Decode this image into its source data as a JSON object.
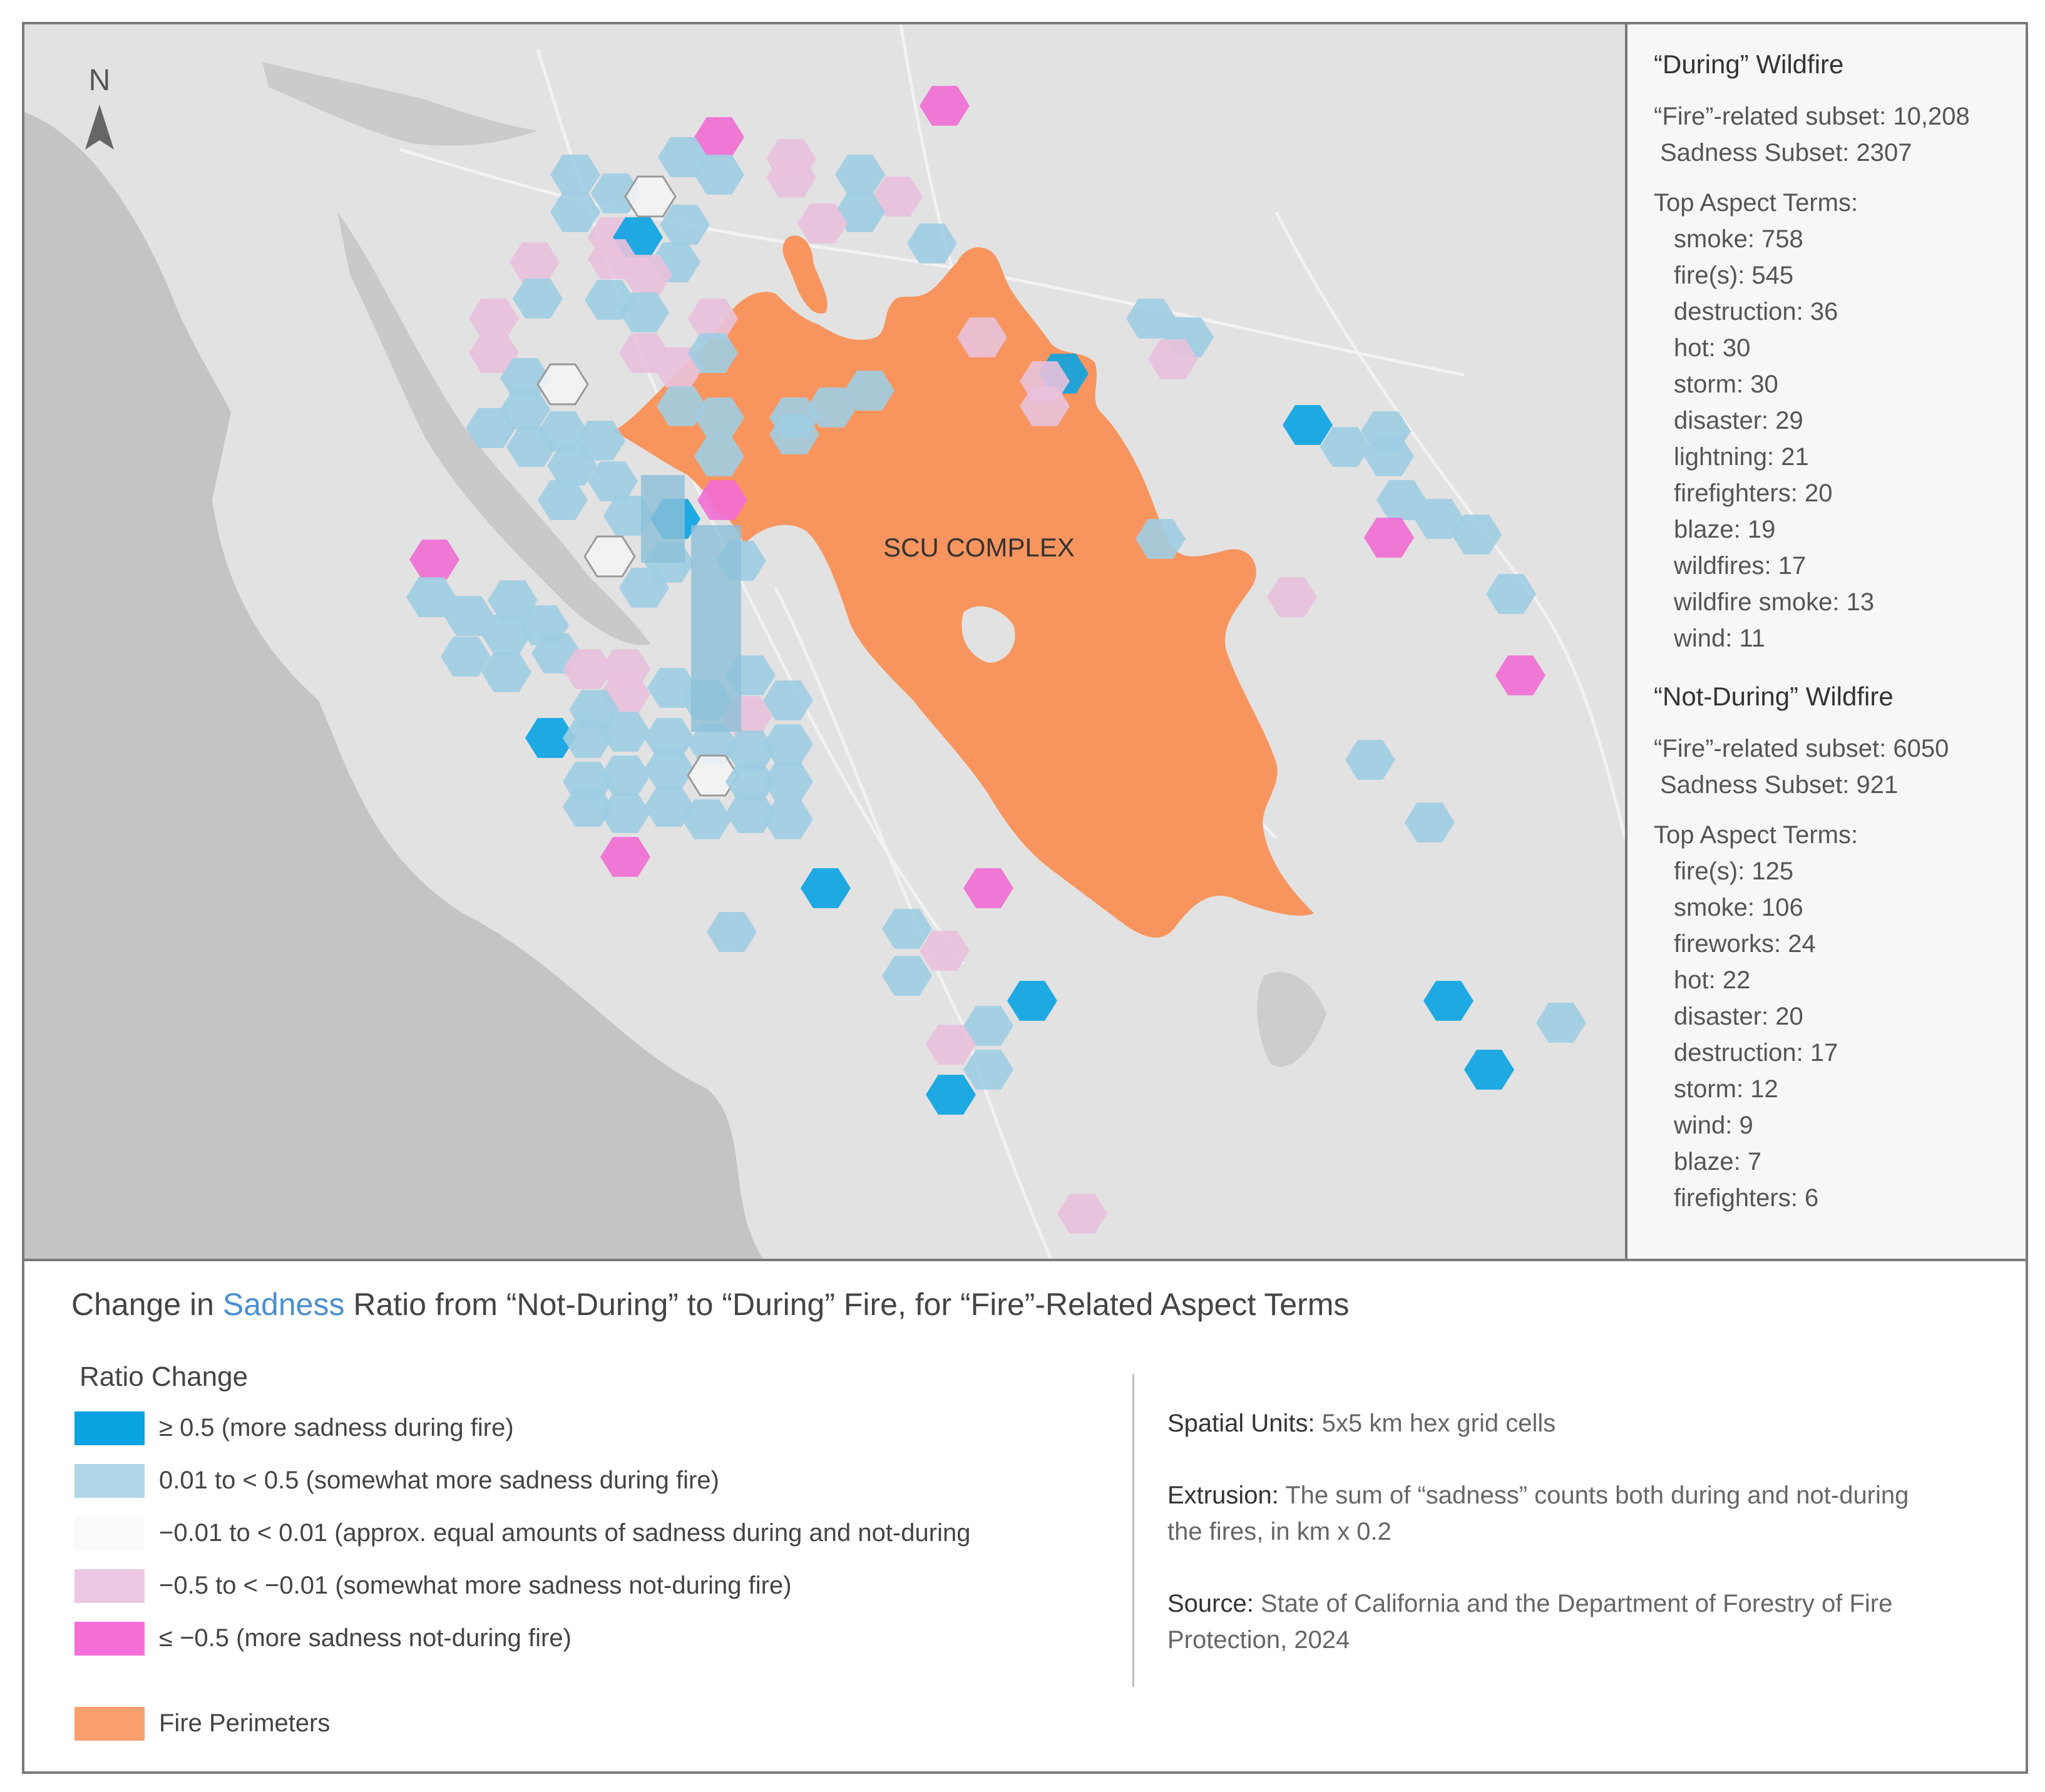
{
  "map": {
    "north_label": "N",
    "fire_label": "SCU COMPLEX",
    "colors": {
      "land": "#e2e2e2",
      "water": "#c3c3c3",
      "fire": "#f8955e",
      "more": "#0aa3e2",
      "somewhat_more": "#9fcde3",
      "equal": "#f5f5f5",
      "somewhat_less": "#e8c1dc",
      "less": "#f26dd4"
    }
  },
  "during": {
    "title": "“During” Wildfire",
    "fire_subset": "“Fire”-related subset: 10,208",
    "sadness_subset": "Sadness Subset: 2307",
    "terms_title": "Top Aspect Terms:",
    "terms": [
      "smoke: 758",
      "fire(s): 545",
      "destruction: 36",
      "hot: 30",
      "storm: 30",
      "disaster: 29",
      "lightning: 21",
      "firefighters: 20",
      "blaze: 19",
      "wildfires: 17",
      "wildfire smoke: 13",
      "wind: 11"
    ]
  },
  "not_during": {
    "title": "“Not-During” Wildfire",
    "fire_subset": "“Fire”-related subset: 6050",
    "sadness_subset": "Sadness Subset: 921",
    "terms_title": "Top Aspect Terms:",
    "terms": [
      "fire(s): 125",
      "smoke: 106",
      "fireworks: 24",
      "hot: 22",
      "disaster: 20",
      "destruction: 17",
      "storm: 12",
      "wind: 9",
      "blaze: 7",
      "firefighters: 6"
    ]
  },
  "legend": {
    "title_prefix": "Change in ",
    "title_accent": "Sadness",
    "title_suffix": " Ratio from “Not-During” to “During” Fire, for “Fire”-Related Aspect Terms",
    "ratio_heading": "Ratio Change",
    "items": [
      {
        "label": "≥ 0.5 (more sadness during fire)",
        "color": "#0aa3e2"
      },
      {
        "label": "0.01 to < 0.5 (somewhat more sadness during fire)",
        "color": "#afd5e6"
      },
      {
        "label": "−0.01 to < 0.01 (approx. equal amounts of sadness during and not-during",
        "color": "#fafafa"
      },
      {
        "label": "−0.5 to < −0.01 (somewhat more sadness not-during fire)",
        "color": "#ecc8e2"
      },
      {
        "label": "≤ −0.5 (more sadness not-during fire)",
        "color": "#f66fd8"
      }
    ],
    "fire_item": {
      "label": "Fire Perimeters",
      "color": "#f9a06d"
    },
    "spatial_label": "Spatial Units:",
    "spatial_text": " 5x5 km hex grid cells",
    "extrusion_label": "Extrusion:",
    "extrusion_text": " The sum of “sadness” counts both during and not-during the fires, in km x 0.2",
    "source_label": "Source:",
    "source_text": " State of California and the Department of Forestry of Fire Protection, 2024"
  }
}
